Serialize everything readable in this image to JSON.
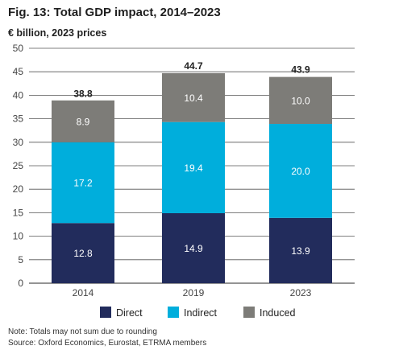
{
  "figure": {
    "title": "Fig. 13: Total GDP impact, 2014–2023",
    "subtitle": "€ billion, 2023 prices",
    "note": "Note: Totals may not sum due to rounding",
    "source": "Source: Oxford Economics, Eurostat, ETRMA members"
  },
  "colors": {
    "direct": "#222c5c",
    "indirect": "#00aedc",
    "induced": "#7d7c78",
    "grid": "#555555",
    "axis_text": "#444444",
    "total_text": "#222222"
  },
  "chart_data": {
    "type": "bar",
    "stacked": true,
    "title": "Fig. 13: Total GDP impact, 2014–2023",
    "subtitle": "€ billion, 2023 prices",
    "xlabel": "",
    "ylabel": "",
    "categories": [
      "2014",
      "2019",
      "2023"
    ],
    "series": [
      {
        "name": "Direct",
        "values": [
          12.8,
          14.9,
          13.9
        ],
        "color": "#222c5c"
      },
      {
        "name": "Indirect",
        "values": [
          17.2,
          19.4,
          20.0
        ],
        "color": "#00aedc"
      },
      {
        "name": "Induced",
        "values": [
          8.9,
          10.4,
          10.0
        ],
        "color": "#7d7c78"
      }
    ],
    "data_labels": [
      [
        "12.8",
        "14.9",
        "13.9"
      ],
      [
        "17.2",
        "19.4",
        "20.0"
      ],
      [
        "8.9",
        "10.4",
        "10.0"
      ]
    ],
    "totals": [
      38.8,
      44.7,
      43.9
    ],
    "total_labels": [
      "38.8",
      "44.7",
      "43.9"
    ],
    "ylim": [
      0,
      50
    ],
    "yticks": [
      0,
      5,
      10,
      15,
      20,
      25,
      30,
      35,
      40,
      45,
      50
    ],
    "grid": true,
    "legend_position": "bottom-center"
  }
}
